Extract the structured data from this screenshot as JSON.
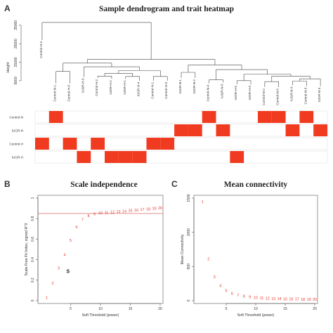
{
  "panels": {
    "a": {
      "letter": "A",
      "title": "Sample dendrogram and trait heatmap"
    },
    "b": {
      "letter": "B",
      "title": "Scale independence"
    },
    "c": {
      "letter": "C",
      "title": "Mean connectivity"
    }
  },
  "annotation": {
    "s_label": "S"
  },
  "colors": {
    "accent": "#f03b20",
    "line": "#d96b6b",
    "point": "#e8352b",
    "axis": "#555555"
  },
  "chart_data": [
    {
      "type": "dendrogram",
      "title": "Sample dendrogram and trait heatmap",
      "ylabel": "Height",
      "y_ticks": [
        5000,
        15000,
        25000,
        35000
      ],
      "y_tick_labels": [
        "5000",
        "15000",
        "25000",
        "35000"
      ],
      "leaves": [
        "Control-H-4",
        "Control-N-1",
        "Control-H-5",
        "IUGR-H-3",
        "Control-H-2",
        "IUGR-H-2",
        "IUGR-H-1",
        "IUGR-H-4",
        "Control-H-1",
        "Control-H-3",
        "IUGR-N-1",
        "IUGR-N-2",
        "Control-N-4",
        "IUGR-N-5",
        "IUGR-H-5",
        "IUGR-H-3",
        "Control-N-2",
        "Control-N-5",
        "IUGR-N-3",
        "Control-N-3",
        "IUGR-N-4"
      ],
      "leaf_heights": [
        27000,
        3500,
        3500,
        7000,
        6500,
        6000,
        6000,
        5000,
        5000,
        5000,
        6500,
        6500,
        3500,
        4000,
        3000,
        3000,
        1500,
        1500,
        2500,
        2000,
        2000
      ],
      "traits": {
        "rows": [
          "Control-N",
          "IUGR-N",
          "Control-H",
          "IUGR-H"
        ],
        "matrix": [
          [
            0,
            1,
            0,
            0,
            0,
            0,
            0,
            0,
            0,
            0,
            0,
            0,
            1,
            0,
            0,
            0,
            1,
            1,
            0,
            1,
            0
          ],
          [
            0,
            0,
            0,
            0,
            0,
            0,
            0,
            0,
            0,
            0,
            1,
            1,
            0,
            1,
            0,
            0,
            0,
            0,
            1,
            0,
            1
          ],
          [
            1,
            0,
            1,
            0,
            1,
            0,
            0,
            0,
            1,
            1,
            0,
            0,
            0,
            0,
            0,
            0,
            0,
            0,
            0,
            0,
            0
          ],
          [
            0,
            0,
            0,
            1,
            0,
            1,
            1,
            1,
            0,
            0,
            0,
            0,
            0,
            0,
            1,
            0,
            0,
            0,
            0,
            0,
            0
          ]
        ]
      }
    },
    {
      "type": "scatter",
      "title": "Scale independence",
      "xlabel": "Soft Threshold (power)",
      "ylabel": "Scale Free Fit Index, signed R^2",
      "xlim": [
        0,
        20
      ],
      "ylim": [
        0,
        1.0
      ],
      "x_ticks": [
        5,
        10,
        15,
        20
      ],
      "y_ticks": [
        0.0,
        0.2,
        0.4,
        0.6,
        0.8,
        1.0
      ],
      "x": [
        1,
        2,
        3,
        4,
        5,
        6,
        7,
        8,
        9,
        10,
        11,
        12,
        13,
        14,
        15,
        16,
        17,
        18,
        19,
        20
      ],
      "y": [
        0.03,
        0.17,
        0.32,
        0.45,
        0.59,
        0.72,
        0.79,
        0.83,
        0.845,
        0.855,
        0.86,
        0.865,
        0.87,
        0.875,
        0.88,
        0.885,
        0.89,
        0.895,
        0.9,
        0.905
      ],
      "point_labels": [
        "1",
        "2",
        "3",
        "4",
        "5",
        "6",
        "7",
        "8",
        "9",
        "10",
        "11",
        "12",
        "13",
        "14",
        "15",
        "16",
        "17",
        "18",
        "19",
        "20"
      ],
      "hline": 0.85
    },
    {
      "type": "scatter",
      "title": "Mean connectivity",
      "xlabel": "Soft Threshold (power)",
      "ylabel": "Mean Connectivity",
      "xlim": [
        0,
        20
      ],
      "ylim": [
        0,
        1500
      ],
      "x_ticks": [
        5,
        10,
        15,
        20
      ],
      "y_ticks": [
        0,
        500,
        1000,
        1500
      ],
      "x": [
        1,
        2,
        3,
        4,
        5,
        6,
        7,
        8,
        9,
        10,
        11,
        12,
        13,
        14,
        15,
        16,
        17,
        18,
        19,
        20
      ],
      "y": [
        1450,
        610,
        350,
        220,
        150,
        110,
        80,
        65,
        55,
        45,
        40,
        35,
        32,
        30,
        28,
        26,
        24,
        22,
        20,
        18
      ],
      "point_labels": [
        "1",
        "2",
        "3",
        "4",
        "5",
        "6",
        "7",
        "8",
        "9",
        "10",
        "11",
        "12",
        "13",
        "14",
        "15",
        "16",
        "17",
        "18",
        "19",
        "20"
      ]
    }
  ]
}
